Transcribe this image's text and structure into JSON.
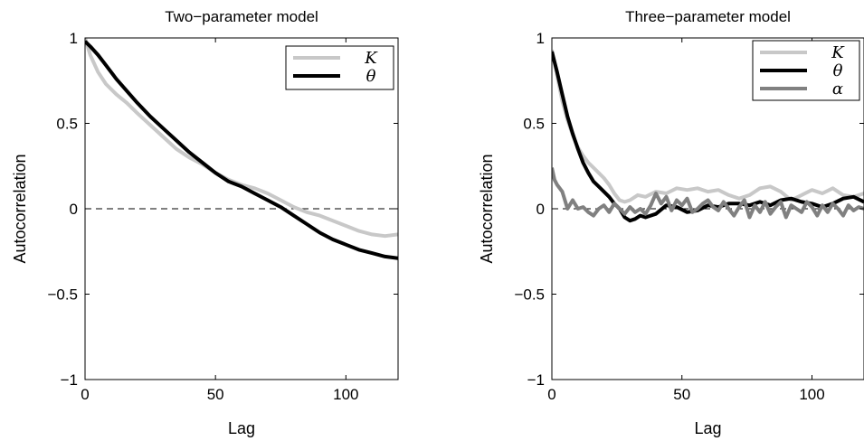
{
  "chart_data": [
    {
      "type": "line",
      "title": "Two−parameter model",
      "xlabel": "Lag",
      "ylabel": "Autocorrelation",
      "xlim": [
        0,
        120
      ],
      "ylim": [
        -1,
        1
      ],
      "xticks": [
        0,
        50,
        100
      ],
      "xtick_labels": [
        "0",
        "50",
        "100"
      ],
      "yticks": [
        -1,
        -0.5,
        0,
        0.5,
        1
      ],
      "ytick_labels": [
        "−1",
        "−0.5",
        "0",
        "0.5",
        "1"
      ],
      "reference_line": {
        "y": 0,
        "style": "dashed"
      },
      "legend_position": "top-right",
      "series": [
        {
          "name": "K",
          "color": "#c8c8c8",
          "x": [
            0,
            2,
            5,
            8,
            12,
            16,
            20,
            25,
            30,
            35,
            40,
            45,
            50,
            55,
            60,
            65,
            70,
            75,
            80,
            85,
            90,
            95,
            100,
            105,
            110,
            115,
            120
          ],
          "values": [
            1.0,
            0.9,
            0.8,
            0.73,
            0.67,
            0.62,
            0.56,
            0.49,
            0.42,
            0.35,
            0.3,
            0.26,
            0.21,
            0.17,
            0.14,
            0.12,
            0.09,
            0.05,
            0.01,
            -0.02,
            -0.04,
            -0.07,
            -0.1,
            -0.13,
            -0.15,
            -0.16,
            -0.15
          ]
        },
        {
          "name": "θ",
          "color": "#000000",
          "x": [
            0,
            2,
            5,
            8,
            12,
            16,
            20,
            25,
            30,
            35,
            40,
            45,
            50,
            55,
            60,
            65,
            70,
            75,
            80,
            85,
            90,
            95,
            100,
            105,
            110,
            115,
            120
          ],
          "values": [
            0.98,
            0.95,
            0.9,
            0.84,
            0.76,
            0.69,
            0.62,
            0.54,
            0.47,
            0.4,
            0.33,
            0.27,
            0.21,
            0.16,
            0.13,
            0.09,
            0.05,
            0.01,
            -0.04,
            -0.09,
            -0.14,
            -0.18,
            -0.21,
            -0.24,
            -0.26,
            -0.28,
            -0.29
          ]
        }
      ]
    },
    {
      "type": "line",
      "title": "Three−parameter model",
      "xlabel": "Lag",
      "ylabel": "Autocorrelation",
      "xlim": [
        0,
        120
      ],
      "ylim": [
        -1,
        1
      ],
      "xticks": [
        0,
        50,
        100
      ],
      "xtick_labels": [
        "0",
        "50",
        "100"
      ],
      "yticks": [
        -1,
        -0.5,
        0,
        0.5,
        1
      ],
      "ytick_labels": [
        "−1",
        "−0.5",
        "0",
        "0.5",
        "1"
      ],
      "reference_line": {
        "y": 0,
        "style": "dashed"
      },
      "legend_position": "top-right",
      "series": [
        {
          "name": "K",
          "color": "#c8c8c8",
          "x": [
            0,
            2,
            4,
            6,
            8,
            10,
            12,
            14,
            16,
            18,
            20,
            22,
            24,
            26,
            28,
            30,
            33,
            36,
            40,
            44,
            48,
            52,
            56,
            60,
            64,
            68,
            72,
            76,
            80,
            84,
            88,
            92,
            96,
            100,
            104,
            108,
            112,
            116,
            120
          ],
          "values": [
            0.93,
            0.78,
            0.63,
            0.52,
            0.43,
            0.36,
            0.31,
            0.27,
            0.24,
            0.21,
            0.18,
            0.14,
            0.09,
            0.05,
            0.04,
            0.05,
            0.08,
            0.07,
            0.1,
            0.09,
            0.12,
            0.11,
            0.12,
            0.1,
            0.11,
            0.08,
            0.06,
            0.08,
            0.12,
            0.13,
            0.1,
            0.05,
            0.08,
            0.11,
            0.09,
            0.12,
            0.08,
            0.07,
            0.09
          ]
        },
        {
          "name": "θ",
          "color": "#000000",
          "x": [
            0,
            2,
            4,
            6,
            8,
            10,
            12,
            14,
            16,
            18,
            20,
            22,
            24,
            26,
            28,
            30,
            32,
            34,
            36,
            40,
            44,
            48,
            52,
            56,
            60,
            64,
            68,
            72,
            76,
            80,
            84,
            88,
            92,
            96,
            100,
            104,
            108,
            112,
            116,
            120
          ],
          "values": [
            0.92,
            0.8,
            0.67,
            0.54,
            0.44,
            0.35,
            0.27,
            0.21,
            0.16,
            0.13,
            0.1,
            0.07,
            0.03,
            0.0,
            -0.05,
            -0.07,
            -0.06,
            -0.04,
            -0.05,
            -0.03,
            0.02,
            0.01,
            -0.02,
            -0.01,
            0.02,
            0.01,
            0.03,
            0.03,
            0.02,
            0.04,
            0.02,
            0.05,
            0.06,
            0.04,
            0.03,
            0.01,
            0.03,
            0.06,
            0.07,
            0.04
          ]
        },
        {
          "name": "α",
          "color": "#808080",
          "x": [
            0,
            1,
            2,
            4,
            6,
            8,
            10,
            12,
            14,
            16,
            18,
            20,
            22,
            24,
            26,
            28,
            30,
            32,
            34,
            36,
            38,
            40,
            42,
            44,
            46,
            48,
            50,
            52,
            54,
            56,
            58,
            60,
            62,
            64,
            66,
            68,
            70,
            72,
            74,
            76,
            78,
            80,
            82,
            84,
            86,
            88,
            90,
            92,
            94,
            96,
            98,
            100,
            102,
            104,
            106,
            108,
            110,
            112,
            114,
            116,
            118,
            120
          ],
          "values": [
            0.24,
            0.17,
            0.14,
            0.1,
            0.0,
            0.05,
            0.0,
            0.01,
            -0.02,
            -0.04,
            0.0,
            0.02,
            -0.02,
            0.03,
            0.0,
            -0.03,
            0.01,
            -0.02,
            0.0,
            -0.03,
            0.02,
            0.09,
            0.03,
            0.07,
            -0.01,
            0.05,
            0.02,
            0.06,
            -0.02,
            0.0,
            0.03,
            0.05,
            0.01,
            -0.01,
            0.04,
            0.0,
            -0.04,
            0.01,
            0.05,
            -0.05,
            0.02,
            -0.02,
            0.04,
            -0.03,
            0.01,
            0.04,
            -0.05,
            0.02,
            0.0,
            -0.02,
            0.04,
            0.01,
            -0.04,
            0.02,
            -0.02,
            0.03,
            0.0,
            -0.04,
            0.02,
            -0.01,
            0.01,
            0.0
          ]
        }
      ]
    }
  ]
}
